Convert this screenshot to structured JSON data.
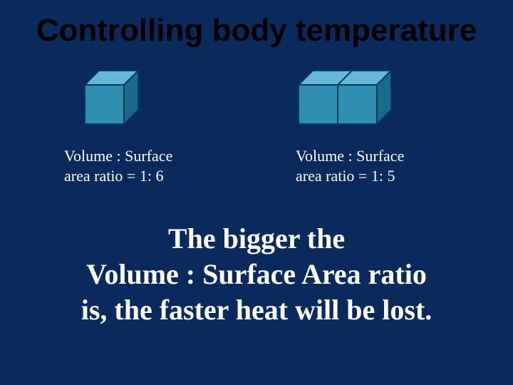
{
  "slide": {
    "title": "Controlling body temperature",
    "background_color": "#0a2a5e",
    "title_color": "#000000",
    "text_color": "#ffffff",
    "left_cube": {
      "type": "single-cube",
      "front_fill": "#2f8eb0",
      "top_fill": "#66b8d8",
      "side_fill": "#1a6a8a",
      "stroke": "#0a3a5a",
      "stroke_width": 2,
      "unit_size": 55,
      "depth": 20,
      "label_line1": "Volume : Surface",
      "label_line2": "area ratio = 1: 6"
    },
    "right_cube": {
      "type": "double-cube",
      "front_fill": "#2f8eb0",
      "top_fill": "#66b8d8",
      "side_fill": "#1a6a8a",
      "stroke": "#0a3a5a",
      "stroke_width": 2,
      "unit_size": 55,
      "depth": 20,
      "label_line1": "Volume : Surface",
      "label_line2": "area ratio = 1: 5"
    },
    "conclusion_line1": "The bigger the",
    "conclusion_line2": "Volume : Surface Area ratio",
    "conclusion_line3": "is, the faster heat will be lost."
  }
}
